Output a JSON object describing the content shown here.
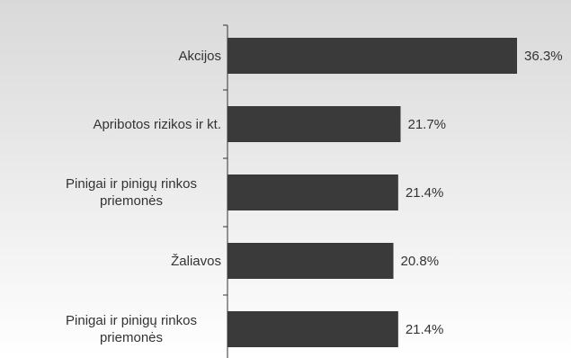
{
  "chart_data": {
    "type": "bar",
    "orientation": "horizontal",
    "categories": [
      "Akcijos",
      "Apribotos rizikos ir kt.",
      "Pinigai ir pinigų rinkos priemonės",
      "Žaliavos",
      "Pinigai ir pinigų rinkos priemonės"
    ],
    "values": [
      36.3,
      21.7,
      21.4,
      20.8,
      21.4
    ],
    "value_labels": [
      "36.3%",
      "21.7%",
      "21.4%",
      "20.8%",
      "21.4%"
    ],
    "color": "#3a3a3a"
  }
}
